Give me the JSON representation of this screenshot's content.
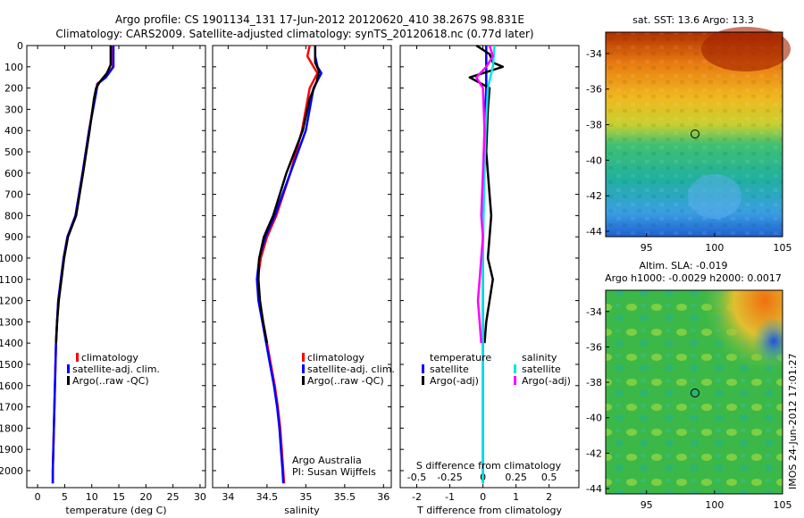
{
  "header": {
    "line1": "Argo profile: CS 1901134_131 17-Jun-2012 20120620_410 38.267S 98.831E",
    "line2": "Climatology: CARS2009. Satellite-adjusted climatology: synTS_20120618.nc (0.77d later)"
  },
  "depth_ticks": [
    "0",
    "100",
    "200",
    "300",
    "400",
    "500",
    "600",
    "700",
    "800",
    "900",
    "1000",
    "1100",
    "1200",
    "1300",
    "1400",
    "1500",
    "1600",
    "1700",
    "1800",
    "1900",
    "2000"
  ],
  "credit": {
    "line1": "Argo Australia",
    "line2": "PI: Susan Wijffels"
  },
  "stamp": "IMOS 24-Jun-2012 17:01:27",
  "colors": {
    "red": "#ff0000",
    "blue": "#0000ff",
    "black": "#000000",
    "cyan": "#00e5e5",
    "magenta": "#ff00ff"
  },
  "chart_data": [
    {
      "type": "line",
      "xlabel": "temperature (deg C)",
      "xlim": [
        -2,
        31
      ],
      "ylim": [
        2080,
        0
      ],
      "xticks": [
        "0",
        "5",
        "10",
        "15",
        "20",
        "25",
        "30"
      ],
      "legend": [
        "climatology",
        "satellite-adj. clim.",
        "Argo(..raw -QC)"
      ],
      "series": [
        {
          "name": "climatology",
          "color": "#ff0000",
          "points": [
            [
              13.9,
              0
            ],
            [
              13.9,
              100
            ],
            [
              12.5,
              150
            ],
            [
              11.0,
              180
            ],
            [
              10.5,
              250
            ],
            [
              9.5,
              400
            ],
            [
              8.3,
              600
            ],
            [
              7.0,
              800
            ],
            [
              5.5,
              900
            ],
            [
              4.8,
              1000
            ],
            [
              4.3,
              1100
            ],
            [
              3.8,
              1200
            ],
            [
              3.6,
              1300
            ],
            [
              3.4,
              1400
            ],
            [
              3.2,
              1600
            ],
            [
              3.0,
              1800
            ],
            [
              2.8,
              2000
            ],
            [
              2.8,
              2060
            ]
          ]
        },
        {
          "name": "satellite-adj. clim.",
          "color": "#0000ff",
          "points": [
            [
              14.0,
              0
            ],
            [
              14.0,
              100
            ],
            [
              12.6,
              150
            ],
            [
              11.1,
              180
            ],
            [
              10.6,
              250
            ],
            [
              9.5,
              400
            ],
            [
              8.3,
              600
            ],
            [
              7.0,
              800
            ],
            [
              5.5,
              900
            ],
            [
              4.8,
              1000
            ],
            [
              4.3,
              1100
            ],
            [
              3.8,
              1200
            ],
            [
              3.6,
              1300
            ],
            [
              3.4,
              1400
            ],
            [
              3.2,
              1600
            ],
            [
              3.0,
              1800
            ],
            [
              2.8,
              2000
            ],
            [
              2.8,
              2060
            ]
          ]
        },
        {
          "name": "Argo(..raw -QC)",
          "color": "#000000",
          "points": [
            [
              13.5,
              0
            ],
            [
              13.5,
              90
            ],
            [
              12.8,
              130
            ],
            [
              11.5,
              170
            ],
            [
              10.8,
              200
            ],
            [
              10.4,
              250
            ],
            [
              9.6,
              400
            ],
            [
              8.4,
              600
            ],
            [
              7.1,
              800
            ],
            [
              5.6,
              900
            ],
            [
              4.9,
              1000
            ],
            [
              4.4,
              1100
            ],
            [
              3.9,
              1200
            ],
            [
              3.6,
              1300
            ],
            [
              3.4,
              1400
            ]
          ]
        }
      ]
    },
    {
      "type": "line",
      "xlabel": "salinity",
      "xlim": [
        33.8,
        36.1
      ],
      "ylim": [
        2080,
        0
      ],
      "xticks": [
        "34",
        "34.5",
        "35",
        "35.5",
        "36"
      ],
      "legend": [
        "climatology",
        "satellite-adj. clim.",
        "Argo(..raw -QC)"
      ],
      "series": [
        {
          "name": "climatology",
          "color": "#ff0000",
          "points": [
            [
              35.05,
              0
            ],
            [
              35.02,
              50
            ],
            [
              35.1,
              100
            ],
            [
              35.15,
              130
            ],
            [
              35.05,
              200
            ],
            [
              34.95,
              400
            ],
            [
              34.8,
              600
            ],
            [
              34.62,
              800
            ],
            [
              34.5,
              900
            ],
            [
              34.42,
              1000
            ],
            [
              34.38,
              1100
            ],
            [
              34.4,
              1200
            ],
            [
              34.45,
              1300
            ],
            [
              34.5,
              1400
            ],
            [
              34.55,
              1500
            ],
            [
              34.6,
              1600
            ],
            [
              34.64,
              1700
            ],
            [
              34.67,
              1800
            ],
            [
              34.69,
              1900
            ],
            [
              34.71,
              2000
            ],
            [
              34.72,
              2060
            ]
          ]
        },
        {
          "name": "satellite-adj. clim.",
          "color": "#0000ff",
          "points": [
            [
              35.12,
              0
            ],
            [
              35.12,
              50
            ],
            [
              35.15,
              100
            ],
            [
              35.2,
              130
            ],
            [
              35.1,
              200
            ],
            [
              35.0,
              400
            ],
            [
              34.8,
              600
            ],
            [
              34.6,
              800
            ],
            [
              34.48,
              900
            ],
            [
              34.4,
              1000
            ],
            [
              34.37,
              1100
            ],
            [
              34.39,
              1200
            ],
            [
              34.44,
              1300
            ],
            [
              34.49,
              1400
            ],
            [
              34.54,
              1500
            ],
            [
              34.59,
              1600
            ],
            [
              34.63,
              1700
            ],
            [
              34.66,
              1800
            ],
            [
              34.68,
              1900
            ],
            [
              34.7,
              2000
            ],
            [
              34.71,
              2060
            ]
          ]
        },
        {
          "name": "Argo(..raw -QC)",
          "color": "#000000",
          "points": [
            [
              35.12,
              0
            ],
            [
              35.12,
              80
            ],
            [
              35.17,
              120
            ],
            [
              35.14,
              170
            ],
            [
              35.05,
              250
            ],
            [
              34.96,
              400
            ],
            [
              34.75,
              600
            ],
            [
              34.58,
              800
            ],
            [
              34.46,
              900
            ],
            [
              34.4,
              1000
            ],
            [
              34.39,
              1100
            ],
            [
              34.41,
              1200
            ],
            [
              34.45,
              1300
            ],
            [
              34.5,
              1400
            ]
          ]
        }
      ]
    },
    {
      "type": "line",
      "xlabel": "T difference from climatology",
      "xlabel_top": "S difference from climatology",
      "xlim": [
        -2.5,
        2.9
      ],
      "ylim": [
        2080,
        0
      ],
      "xticks": [
        "-2",
        "-1",
        "0",
        "1",
        "2"
      ],
      "xticks_top": [
        "-0.5",
        "-0.25",
        "0",
        "0.25",
        "0.5"
      ],
      "legend": {
        "temperature_title": "temperature",
        "salinity_title": "salinity",
        "entries": [
          "satellite",
          "Argo(-adj)",
          "satellite",
          "Argo(-adj)"
        ]
      },
      "series": [
        {
          "name": "satellite",
          "group": "temperature",
          "color": "#0000ff",
          "points": [
            [
              0.1,
              0
            ],
            [
              0.1,
              100
            ],
            [
              0.1,
              200
            ],
            [
              0.05,
              400
            ],
            [
              0.02,
              600
            ],
            [
              0.0,
              800
            ],
            [
              0.0,
              1000
            ],
            [
              0.0,
              1200
            ],
            [
              0.0,
              1400
            ],
            [
              0.0,
              1600
            ],
            [
              0.0,
              1800
            ],
            [
              0.0,
              2000
            ],
            [
              0.0,
              2060
            ]
          ]
        },
        {
          "name": "Argo(-adj)",
          "group": "temperature",
          "color": "#000000",
          "points": [
            [
              -0.2,
              0
            ],
            [
              0.2,
              40
            ],
            [
              0.3,
              80
            ],
            [
              0.6,
              100
            ],
            [
              -0.4,
              150
            ],
            [
              0.2,
              200
            ],
            [
              0.15,
              300
            ],
            [
              0.1,
              500
            ],
            [
              0.2,
              700
            ],
            [
              0.25,
              800
            ],
            [
              0.15,
              1000
            ],
            [
              0.3,
              1100
            ],
            [
              0.1,
              1300
            ],
            [
              0.05,
              1400
            ]
          ]
        },
        {
          "name": "satellite",
          "group": "salinity",
          "color": "#00e5e5",
          "points": [
            [
              0.35,
              0
            ],
            [
              0.3,
              100
            ],
            [
              0.15,
              200
            ],
            [
              0.08,
              400
            ],
            [
              0.05,
              600
            ],
            [
              0.02,
              800
            ],
            [
              0.0,
              1000
            ],
            [
              0.0,
              1200
            ],
            [
              0.0,
              1400
            ],
            [
              0.0,
              1600
            ],
            [
              0.0,
              1800
            ],
            [
              0.0,
              2000
            ],
            [
              0.0,
              2060
            ]
          ]
        },
        {
          "name": "Argo(-adj)",
          "group": "salinity",
          "color": "#ff00ff",
          "points": [
            [
              0.2,
              0
            ],
            [
              0.3,
              50
            ],
            [
              0.1,
              100
            ],
            [
              -0.2,
              150
            ],
            [
              0.0,
              200
            ],
            [
              0.05,
              400
            ],
            [
              0.0,
              600
            ],
            [
              -0.05,
              800
            ],
            [
              0.0,
              900
            ],
            [
              -0.05,
              1000
            ],
            [
              -0.1,
              1100
            ],
            [
              -0.15,
              1200
            ],
            [
              -0.1,
              1300
            ],
            [
              -0.05,
              1400
            ]
          ]
        }
      ]
    },
    {
      "type": "heatmap",
      "title": "sat. SST: 13.6  Argo: 13.3",
      "xlim": [
        92,
        105
      ],
      "ylim": [
        -44.3,
        -32.8
      ],
      "xticks": [
        "95",
        "100",
        "105"
      ],
      "yticks": [
        "-34",
        "-36",
        "-38",
        "-40",
        "-42",
        "-44"
      ],
      "marker": {
        "lon": 98.83,
        "lat": -38.27
      }
    },
    {
      "type": "heatmap",
      "title_line1": "Altim. SLA: -0.019",
      "title_line2": "Argo h1000: -0.0029 h2000: 0.0017",
      "xlim": [
        92,
        105
      ],
      "ylim": [
        -44.3,
        -32.8
      ],
      "xticks": [
        "95",
        "100",
        "105"
      ],
      "yticks": [
        "-34",
        "-36",
        "-38",
        "-40",
        "-42",
        "-44"
      ],
      "marker": {
        "lon": 98.83,
        "lat": -38.27
      }
    }
  ]
}
